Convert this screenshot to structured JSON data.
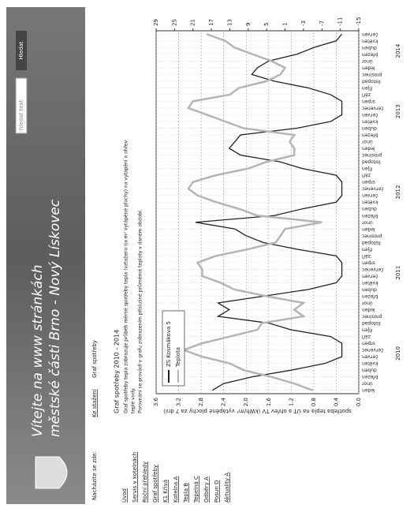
{
  "header": {
    "title_line1": "Vítejte na www stránkách",
    "title_line2": "městské části Brno - Nový Lískovec",
    "search_placeholder": "hledat text",
    "search_button": "Hledat"
  },
  "breadcrumb": {
    "label": "Nacházíte se zde:",
    "items": [
      "Ke stažení",
      "Graf spotřeby"
    ]
  },
  "sidebar": {
    "items": [
      "Úvod",
      "Servis v kotelnách",
      "Roční přehledy",
      "Graf spotřeby",
      "K1 Křivá",
      "Kotelna A",
      "Tepla B",
      "Tepelná C",
      "Odběry A",
      "Posun D",
      "Aktuality A"
    ]
  },
  "content": {
    "title": "Graf spotřeby 2010 - 2014",
    "text": [
      "Graf spotřeby tepla zobrazuje průběh měrné spotřeby tepla (vztaženo na m² vytápěné plochy) na vytápění a ohřev",
      "teplé vody.",
      "Porovnání se provádí v grafu zobrazením příslušné průměrné teploty v daném období."
    ]
  },
  "chart_data": {
    "type": "line",
    "categories": [
      "leden",
      "únor",
      "březen",
      "duben",
      "květen",
      "červen",
      "červenec",
      "srpen",
      "září",
      "říjen",
      "listopad",
      "prosinec",
      "leden",
      "únor",
      "březen",
      "duben",
      "květen",
      "červen",
      "červenec",
      "srpen",
      "září",
      "říjen",
      "listopad",
      "prosinec",
      "leden",
      "únor",
      "březen",
      "duben",
      "květen",
      "červen",
      "červenec",
      "srpen",
      "září",
      "říjen",
      "listopad",
      "prosinec",
      "leden",
      "únor",
      "březen",
      "duben",
      "květen",
      "červen",
      "červenec",
      "srpen",
      "září",
      "říjen",
      "listopad",
      "prosinec",
      "leden",
      "únor",
      "březen",
      "duben",
      "květen",
      "červen"
    ],
    "years": [
      "2010",
      "2011",
      "2012",
      "2013",
      "2014"
    ],
    "ylabel": "spotřeba tepla na ÚT a ohřev TV (kWh/m² vytápěné plochy za 7 dní)",
    "ylim": [
      0,
      3.6
    ],
    "yticks": [
      {
        "value": 0,
        "label": "0.0"
      },
      0.4,
      0.8,
      1.2,
      1.6,
      {
        "value": 2,
        "label": "2.0"
      },
      2.4,
      2.8,
      3.2,
      3.6
    ],
    "y2lim": [
      -15,
      29
    ],
    "y2ticks": [
      -15,
      -11,
      -7,
      -3,
      1,
      5,
      9,
      13,
      17,
      21,
      25,
      29
    ],
    "grid": true,
    "series": [
      {
        "name": "ZS Kosmákova 5",
        "color": "#222222",
        "values": [
          2.6,
          2.4,
          1.9,
          1.2,
          0.6,
          0.3,
          0.3,
          0.3,
          0.5,
          1.2,
          1.6,
          2.5,
          2.3,
          2.5,
          1.7,
          0.9,
          0.4,
          0.3,
          0.3,
          0.3,
          0.4,
          1.1,
          1.7,
          2.0,
          2.2,
          2.9,
          1.5,
          1.0,
          0.4,
          0.3,
          0.3,
          0.3,
          0.4,
          1.0,
          1.4,
          2.1,
          2.3,
          2.2,
          2.1,
          1.1,
          0.5,
          0.3,
          0.3,
          0.3,
          0.5,
          0.9,
          1.5,
          1.9,
          1.8,
          1.6,
          1.1,
          0.8,
          0.4,
          0.3
        ]
      },
      {
        "name": "Teplota",
        "color": "#b5b5b5",
        "axis": "y2",
        "values": [
          -5,
          -1,
          4,
          10,
          13,
          19,
          23,
          19,
          13,
          7,
          6,
          -3,
          -1,
          -3,
          5,
          12,
          15,
          19,
          19,
          20,
          16,
          9,
          3,
          2,
          1,
          -7,
          7,
          11,
          16,
          20,
          22,
          21,
          16,
          9,
          5,
          -1,
          -1,
          0,
          -1,
          10,
          14,
          18,
          22,
          21,
          13,
          11,
          5,
          2,
          1,
          4,
          8,
          12,
          14,
          18
        ]
      }
    ]
  }
}
